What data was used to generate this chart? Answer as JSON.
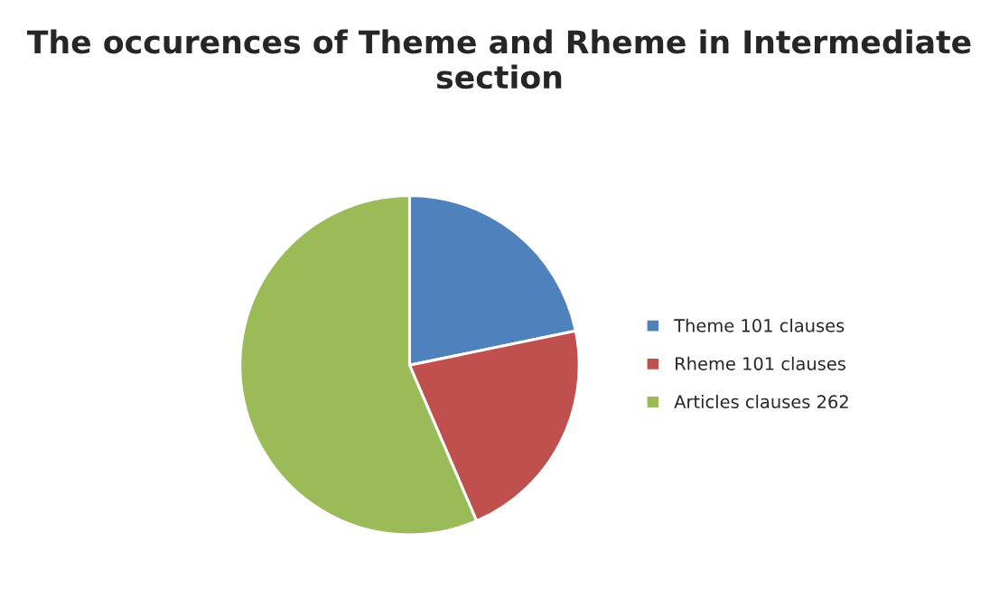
{
  "chart_data": {
    "type": "pie",
    "title": "The occurences of Theme and Rheme in Intermediate section",
    "categories": [
      "Theme 101 clauses",
      "Rheme 101 clauses",
      "Articles clauses 262"
    ],
    "values": [
      101,
      101,
      262
    ],
    "colors": [
      "#4f81bd",
      "#c0504d",
      "#9bbb59"
    ],
    "legend": "right"
  }
}
